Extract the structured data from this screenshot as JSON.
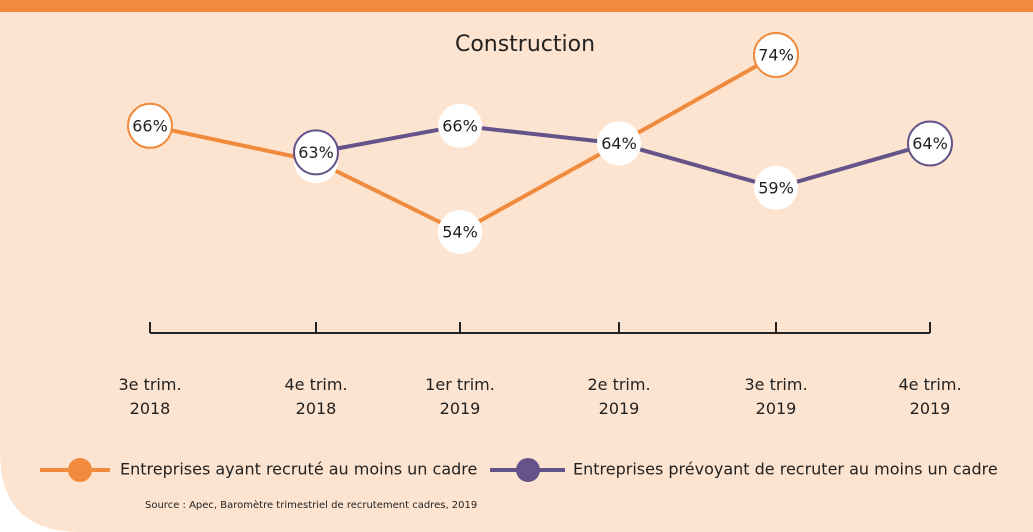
{
  "chart_data": {
    "type": "line",
    "title": "Construction",
    "categories": [
      "3e trim.\n2018",
      "4e trim.\n2018",
      "1er trim.\n2019",
      "2e trim.\n2019",
      "3e trim.\n2019",
      "4e trim.\n2019"
    ],
    "series": [
      {
        "name": "Entreprises ayant recruté au moins un cadre",
        "color": "#f08a3c",
        "values": [
          66,
          62,
          54,
          64,
          74,
          null
        ],
        "value_labels": [
          "66%",
          "62%",
          "54%",
          "64%",
          "74%",
          null
        ]
      },
      {
        "name": "Entreprises prévoyant de recruter au moins un cadre",
        "color": "#64548a",
        "values": [
          null,
          63,
          66,
          64,
          59,
          64
        ],
        "value_labels": [
          null,
          "63%",
          "66%",
          "64%",
          "59%",
          "64%"
        ]
      }
    ],
    "source": "Source : Apec, Baromètre trimestriel de recrutement cadres, 2019"
  }
}
